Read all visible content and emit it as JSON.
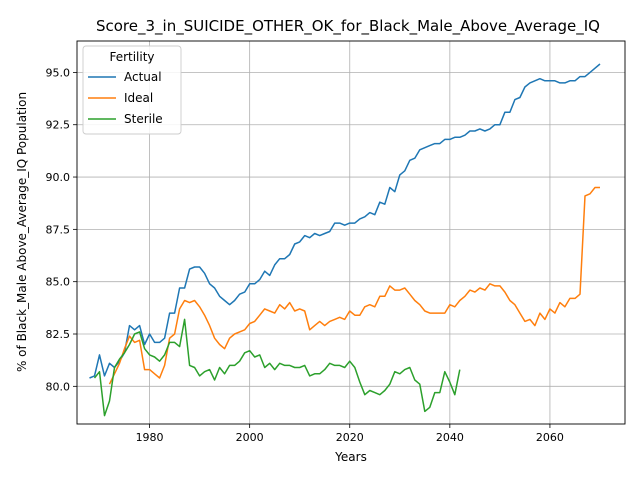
{
  "chart_data": {
    "type": "line",
    "title": "Score_3_in_SUICIDE_OTHER_OK_for_Black_Male_Above_Average_IQ",
    "xlabel": "Years",
    "ylabel": "% of Black_Male Above_Average_IQ Population",
    "xlim": [
      1965.5,
      2075
    ],
    "ylim": [
      78.2,
      96.5
    ],
    "xticks": [
      1980,
      2000,
      2020,
      2040,
      2060
    ],
    "xtick_labels": [
      "1980",
      "2000",
      "2020",
      "2040",
      "2060"
    ],
    "yticks": [
      80.0,
      82.5,
      85.0,
      87.5,
      90.0,
      92.5,
      95.0
    ],
    "ytick_labels": [
      "80.0",
      "82.5",
      "85.0",
      "87.5",
      "90.0",
      "92.5",
      "95.0"
    ],
    "grid": true,
    "legend": {
      "title": "Fertility",
      "placement": "top-left"
    },
    "series": [
      {
        "name": "Actual",
        "color": "#1f77b4",
        "x": [
          1968,
          1969,
          1970,
          1971,
          1972,
          1973,
          1974,
          1975,
          1976,
          1977,
          1978,
          1979,
          1980,
          1981,
          1982,
          1983,
          1984,
          1985,
          1986,
          1987,
          1988,
          1989,
          1990,
          1991,
          1992,
          1993,
          1994,
          1995,
          1996,
          1997,
          1998,
          1999,
          2000,
          2001,
          2002,
          2003,
          2004,
          2005,
          2006,
          2007,
          2008,
          2009,
          2010,
          2011,
          2012,
          2013,
          2014,
          2015,
          2016,
          2017,
          2018,
          2019,
          2020,
          2021,
          2022,
          2023,
          2024,
          2025,
          2026,
          2027,
          2028,
          2029,
          2030,
          2031,
          2032,
          2033,
          2034,
          2035,
          2036,
          2037,
          2038,
          2039,
          2040,
          2041,
          2042,
          2043,
          2044,
          2045,
          2046,
          2047,
          2048,
          2049,
          2050,
          2051,
          2052,
          2053,
          2054,
          2055,
          2056,
          2057,
          2058,
          2059,
          2060,
          2061,
          2062,
          2063,
          2064,
          2065,
          2066,
          2067,
          2068,
          2069,
          2070
        ],
        "values": [
          80.4,
          80.5,
          81.5,
          80.5,
          81.1,
          80.9,
          81.2,
          81.6,
          82.9,
          82.7,
          82.9,
          82.0,
          82.5,
          82.1,
          82.1,
          82.3,
          83.5,
          83.5,
          84.7,
          84.7,
          85.6,
          85.7,
          85.7,
          85.4,
          84.9,
          84.7,
          84.3,
          84.1,
          83.9,
          84.1,
          84.4,
          84.5,
          84.9,
          84.9,
          85.1,
          85.5,
          85.3,
          85.8,
          86.1,
          86.1,
          86.3,
          86.8,
          86.9,
          87.2,
          87.1,
          87.3,
          87.2,
          87.3,
          87.4,
          87.8,
          87.8,
          87.7,
          87.8,
          87.8,
          88.0,
          88.1,
          88.3,
          88.2,
          88.8,
          88.7,
          89.5,
          89.3,
          90.1,
          90.3,
          90.8,
          90.9,
          91.3,
          91.4,
          91.5,
          91.6,
          91.6,
          91.8,
          91.8,
          91.9,
          91.9,
          92.0,
          92.2,
          92.2,
          92.3,
          92.2,
          92.3,
          92.5,
          92.5,
          93.1,
          93.1,
          93.7,
          93.8,
          94.3,
          94.5,
          94.6,
          94.7,
          94.6,
          94.6,
          94.6,
          94.5,
          94.5,
          94.6,
          94.6,
          94.8,
          94.8,
          95.0,
          95.2,
          95.4
        ]
      },
      {
        "name": "Ideal",
        "color": "#ff7f0e",
        "x": [
          1972,
          1973,
          1974,
          1975,
          1976,
          1977,
          1978,
          1979,
          1980,
          1981,
          1982,
          1983,
          1984,
          1985,
          1986,
          1987,
          1988,
          1989,
          1990,
          1991,
          1992,
          1993,
          1994,
          1995,
          1996,
          1997,
          1998,
          1999,
          2000,
          2001,
          2002,
          2003,
          2004,
          2005,
          2006,
          2007,
          2008,
          2009,
          2010,
          2011,
          2012,
          2013,
          2014,
          2015,
          2016,
          2017,
          2018,
          2019,
          2020,
          2021,
          2022,
          2023,
          2024,
          2025,
          2026,
          2027,
          2028,
          2029,
          2030,
          2031,
          2032,
          2033,
          2034,
          2035,
          2036,
          2037,
          2038,
          2039,
          2040,
          2041,
          2042,
          2043,
          2044,
          2045,
          2046,
          2047,
          2048,
          2049,
          2050,
          2051,
          2052,
          2053,
          2054,
          2055,
          2056,
          2057,
          2058,
          2059,
          2060,
          2061,
          2062,
          2063,
          2064,
          2065,
          2066,
          2067,
          2068,
          2069,
          2070
        ],
        "values": [
          80.1,
          80.6,
          81.1,
          81.8,
          82.4,
          82.1,
          82.2,
          80.8,
          80.8,
          80.6,
          80.4,
          81.0,
          82.3,
          82.5,
          83.7,
          84.1,
          84.0,
          84.1,
          83.8,
          83.4,
          82.9,
          82.3,
          82.0,
          81.8,
          82.3,
          82.5,
          82.6,
          82.7,
          83.0,
          83.1,
          83.4,
          83.7,
          83.6,
          83.5,
          83.9,
          83.7,
          84.0,
          83.6,
          83.7,
          83.6,
          82.7,
          82.9,
          83.1,
          82.9,
          83.1,
          83.2,
          83.3,
          83.2,
          83.6,
          83.4,
          83.4,
          83.8,
          83.9,
          83.8,
          84.3,
          84.3,
          84.8,
          84.6,
          84.6,
          84.7,
          84.4,
          84.1,
          83.9,
          83.6,
          83.5,
          83.5,
          83.5,
          83.5,
          83.9,
          83.8,
          84.1,
          84.3,
          84.6,
          84.5,
          84.7,
          84.6,
          84.9,
          84.8,
          84.8,
          84.5,
          84.1,
          83.9,
          83.5,
          83.1,
          83.2,
          82.9,
          83.5,
          83.2,
          83.7,
          83.5,
          84.0,
          83.8,
          84.2,
          84.2,
          84.4,
          89.1,
          89.2,
          89.5,
          89.5
        ]
      },
      {
        "name": "Sterile",
        "color": "#2ca02c",
        "x": [
          1969,
          1970,
          1971,
          1972,
          1973,
          1974,
          1975,
          1976,
          1977,
          1978,
          1979,
          1980,
          1981,
          1982,
          1983,
          1984,
          1985,
          1986,
          1987,
          1988,
          1989,
          1990,
          1991,
          1992,
          1993,
          1994,
          1995,
          1996,
          1997,
          1998,
          1999,
          2000,
          2001,
          2002,
          2003,
          2004,
          2005,
          2006,
          2007,
          2008,
          2009,
          2010,
          2011,
          2012,
          2013,
          2014,
          2015,
          2016,
          2017,
          2018,
          2019,
          2020,
          2021,
          2022,
          2023,
          2024,
          2025,
          2026,
          2027,
          2028,
          2029,
          2030,
          2031,
          2032,
          2033,
          2034,
          2035,
          2036,
          2037,
          2038,
          2039,
          2040,
          2041,
          2042
        ],
        "values": [
          80.4,
          80.7,
          78.6,
          79.3,
          80.9,
          81.3,
          81.6,
          82.0,
          82.5,
          82.6,
          81.8,
          81.5,
          81.4,
          81.2,
          81.5,
          82.1,
          82.1,
          81.9,
          83.2,
          81.0,
          80.9,
          80.5,
          80.7,
          80.8,
          80.3,
          80.9,
          80.6,
          81.0,
          81.0,
          81.2,
          81.6,
          81.7,
          81.4,
          81.5,
          80.9,
          81.1,
          80.8,
          81.1,
          81.0,
          81.0,
          80.9,
          80.9,
          81.0,
          80.5,
          80.6,
          80.6,
          80.8,
          81.1,
          81.0,
          81.0,
          80.9,
          81.2,
          80.9,
          80.2,
          79.6,
          79.8,
          79.7,
          79.6,
          79.8,
          80.1,
          80.7,
          80.6,
          80.8,
          80.9,
          80.3,
          80.1,
          78.8,
          79.0,
          79.7,
          79.7,
          80.7,
          80.2,
          79.6,
          80.8
        ]
      }
    ]
  }
}
